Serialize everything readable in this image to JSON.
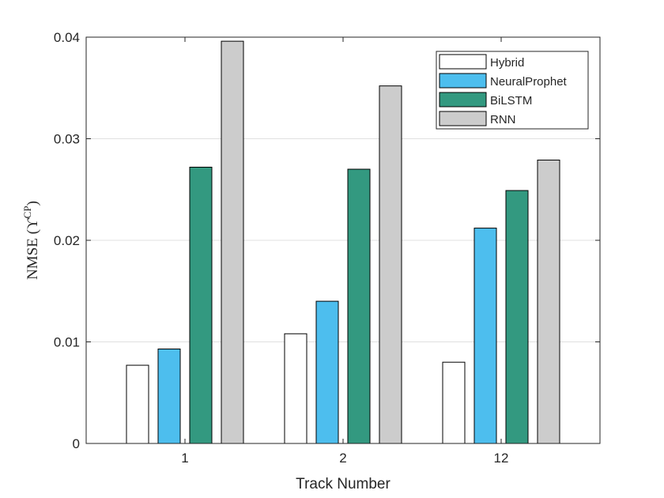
{
  "chart_data": {
    "type": "bar",
    "categories": [
      "1",
      "2",
      "12"
    ],
    "series": [
      {
        "name": "Hybrid",
        "color": "#ffffff",
        "values": [
          0.0077,
          0.0108,
          0.008
        ]
      },
      {
        "name": "NeuralProphet",
        "color": "#4dbeee",
        "values": [
          0.0093,
          0.014,
          0.0212
        ]
      },
      {
        "name": "BiLSTM",
        "color": "#339980",
        "values": [
          0.0272,
          0.027,
          0.0249
        ]
      },
      {
        "name": "RNN",
        "color": "#cccccc",
        "values": [
          0.0396,
          0.0352,
          0.0279
        ]
      }
    ],
    "xlabel": "Track Number",
    "ylabel": "NMSE (",
    "ylabel_symbol": "ϒ",
    "ylabel_sup": "CP",
    "ylabel_close": ")",
    "ylim": [
      0,
      0.04
    ],
    "yticks": [
      "0",
      "0.01",
      "0.02",
      "0.03",
      "0.04"
    ],
    "grid": true,
    "legend_position": "top-right"
  }
}
